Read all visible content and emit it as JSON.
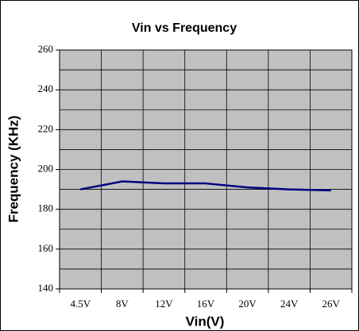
{
  "chart_data": {
    "type": "line",
    "title": "Vin vs Frequency",
    "x_label": "Vin(V)",
    "y_label": "Frequency (KHz)",
    "categories": [
      "4.5V",
      "8V",
      "12V",
      "16V",
      "20V",
      "24V",
      "26V"
    ],
    "series": [
      {
        "name": "Frequency",
        "color": "#000080",
        "values": [
          190,
          194,
          193,
          193,
          191,
          190,
          189.5
        ]
      }
    ],
    "ylim": [
      140,
      260
    ],
    "yticks": [
      140,
      160,
      180,
      200,
      220,
      240,
      260
    ],
    "ygrid": [
      150,
      170,
      190,
      210,
      230,
      250
    ],
    "grid": true,
    "plot_background": "#c0c0c0"
  }
}
